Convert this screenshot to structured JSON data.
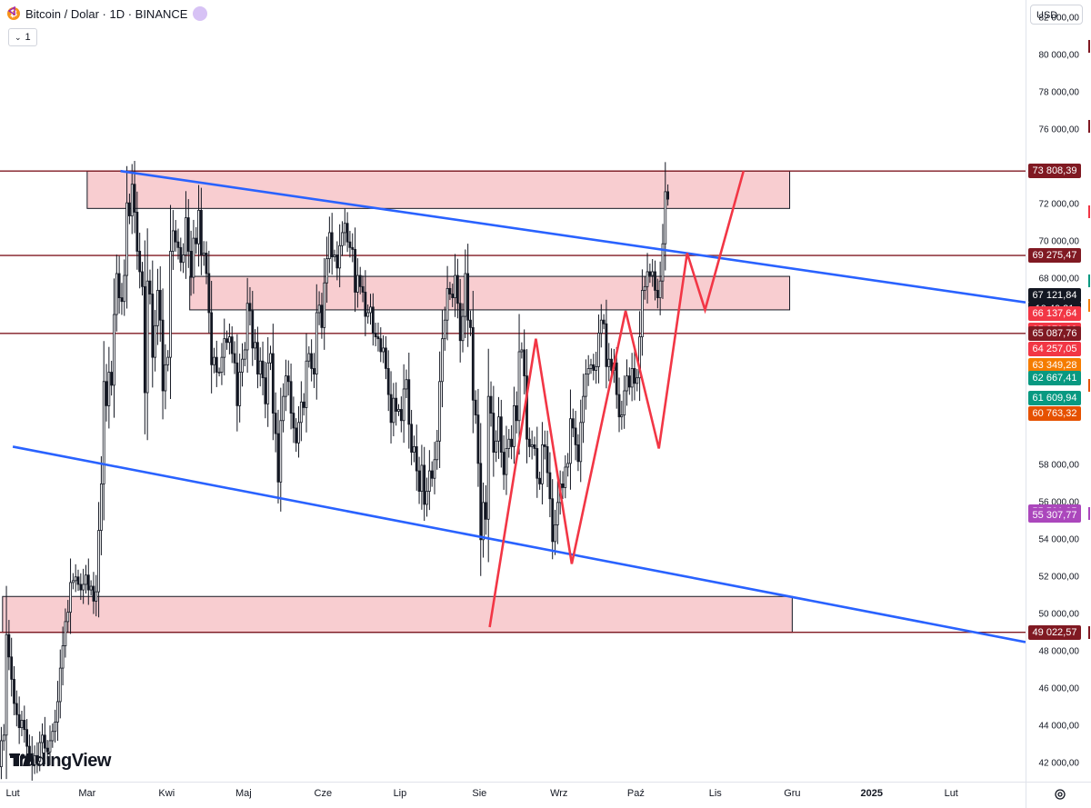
{
  "header": {
    "symbol_title": "Bitcoin / Dolar · 1D · BINANCE",
    "collapse_label": "1",
    "currency": "USD",
    "watermark": "TradingView",
    "icons": [
      "bitcoin-icon",
      "symbol-shape-icon",
      "chevron-down-icon",
      "tradingview-logo-icon",
      "settings-icon"
    ]
  },
  "chart_data": {
    "type": "candlestick",
    "symbol": "Bitcoin / Dolar",
    "interval": "1D",
    "exchange": "BINANCE",
    "y_ticks": [
      "82 000,00",
      "80 000,00",
      "78 000,00",
      "76 000,00",
      "72 000,00",
      "70 000,00",
      "68 000,00",
      "58 000,00",
      "56 000,00",
      "54 000,00",
      "52 000,00",
      "50 000,00",
      "48 000,00",
      "46 000,00",
      "44 000,00",
      "42 000,00"
    ],
    "x_ticks": [
      "Lut",
      "Mar",
      "Kwi",
      "Maj",
      "Cze",
      "Lip",
      "Sie",
      "Wrz",
      "Paź",
      "Lis",
      "Gru",
      "2025",
      "Lut"
    ],
    "ylim": [
      41000,
      83000
    ],
    "xlim": [
      "2024-01-27",
      "2025-03-02"
    ],
    "price_labels": [
      {
        "text": "73 808,39",
        "value": 73808.39,
        "color": "#801922"
      },
      {
        "text": "69 275,47",
        "value": 69275.47,
        "color": "#801922"
      },
      {
        "text": "67 121,84",
        "value": 67121.84,
        "color": "#131722"
      },
      {
        "text": "10:40:21",
        "value": 66400,
        "color": "#131722"
      },
      {
        "text": "66 137,64",
        "value": 66137.64,
        "color": "#f23645"
      },
      {
        "text": "65 270,80",
        "value": 65270.8,
        "color": "#f23645"
      },
      {
        "text": "65 087,76",
        "value": 65087.76,
        "color": "#801922"
      },
      {
        "text": "64 257,05",
        "value": 64257.05,
        "color": "#f23645"
      },
      {
        "text": "63 349,28",
        "value": 63349.28,
        "color": "#f57c00"
      },
      {
        "text": "62 667,41",
        "value": 62667.41,
        "color": "#089981"
      },
      {
        "text": "61 609,94",
        "value": 61609.94,
        "color": "#089981"
      },
      {
        "text": "60 763,32",
        "value": 60763.32,
        "color": "#e65100"
      },
      {
        "text": "55 501,05",
        "value": 55501.05,
        "color": "#ab47bc"
      },
      {
        "text": "55 307,77",
        "value": 55307.77,
        "color": "#ab47bc"
      },
      {
        "text": "49 022,57",
        "value": 49022.57,
        "color": "#801922"
      }
    ],
    "horizontal_lines": [
      73808.39,
      69275.47,
      65087.76,
      49022.57
    ],
    "zones": [
      {
        "x1": "2024-03-01",
        "x2": "2024-11-30",
        "y1": 71800,
        "y2": 73808.39
      },
      {
        "x1": "2024-04-10",
        "x2": "2024-11-30",
        "y1": 66350,
        "y2": 68150
      },
      {
        "x1": "2024-01-28",
        "x2": "2024-12-01",
        "y1": 49022.57,
        "y2": 50950
      }
    ],
    "trendlines": [
      {
        "x1": "2024-03-14",
        "y1": 73808.39,
        "x2": "2025-03-02",
        "y2": 66750
      },
      {
        "x1": "2024-02-01",
        "y1": 59000,
        "x2": "2025-03-02",
        "y2": 48500
      }
    ],
    "zigzag": [
      [
        "2024-08-05",
        49300
      ],
      [
        "2024-08-23",
        64800
      ],
      [
        "2024-09-06",
        52700
      ],
      [
        "2024-09-27",
        66300
      ],
      [
        "2024-10-10",
        58900
      ],
      [
        "2024-10-21",
        69400
      ],
      [
        "2024-10-28",
        66350
      ],
      [
        "2024-11-12",
        73808.39
      ]
    ],
    "candles_by_day": [
      [
        41800,
        43200
      ],
      [
        43200,
        43500
      ],
      [
        43500,
        48900
      ],
      [
        48900,
        47700
      ],
      [
        47700,
        46500
      ],
      [
        46500,
        45200
      ],
      [
        45200,
        44600
      ],
      [
        44600,
        43900
      ],
      [
        43900,
        44300
      ],
      [
        44300,
        43800
      ],
      [
        43800,
        42900
      ],
      [
        42900,
        42500
      ],
      [
        42500,
        41900
      ],
      [
        41900,
        42400
      ],
      [
        42400,
        42100
      ],
      [
        42100,
        43100
      ],
      [
        43100,
        43500
      ],
      [
        43500,
        42800
      ],
      [
        42800,
        42600
      ],
      [
        42600,
        43200
      ],
      [
        43200,
        43700
      ],
      [
        43700,
        44200
      ],
      [
        44200,
        45300
      ],
      [
        45300,
        47100
      ],
      [
        47100,
        48300
      ],
      [
        48300,
        49600
      ],
      [
        49600,
        50100
      ],
      [
        50100,
        51700
      ],
      [
        51700,
        51800
      ],
      [
        51800,
        52000
      ],
      [
        52000,
        51600
      ],
      [
        51600,
        51300
      ],
      [
        51300,
        51600
      ],
      [
        51600,
        52100
      ],
      [
        52100,
        51300
      ],
      [
        51300,
        51500
      ],
      [
        51500,
        50700
      ],
      [
        50700,
        51200
      ],
      [
        51200,
        54500
      ],
      [
        54500,
        57000
      ],
      [
        57000,
        62500
      ],
      [
        62500,
        61200
      ],
      [
        61200,
        63000
      ],
      [
        63000,
        62300
      ],
      [
        62300,
        66100
      ],
      [
        66100,
        68300
      ],
      [
        68300,
        67000
      ],
      [
        67000,
        66800
      ],
      [
        66800,
        68200
      ],
      [
        68200,
        72100
      ],
      [
        72100,
        71400
      ],
      [
        71400,
        73100
      ],
      [
        73100,
        71600
      ],
      [
        71600,
        69500
      ],
      [
        69500,
        68400
      ],
      [
        68400,
        67600
      ],
      [
        67600,
        61900
      ],
      [
        61900,
        67900
      ],
      [
        67900,
        67200
      ],
      [
        67200,
        63800
      ],
      [
        63800,
        65500
      ],
      [
        65500,
        67400
      ],
      [
        67400,
        65800
      ],
      [
        65800,
        62000
      ],
      [
        62000,
        63400
      ],
      [
        63400,
        63800
      ],
      [
        63800,
        69500
      ],
      [
        69500,
        70600
      ],
      [
        70600,
        70000
      ],
      [
        70000,
        69700
      ],
      [
        69700,
        68900
      ],
      [
        68900,
        69300
      ],
      [
        69300,
        71300
      ],
      [
        71300,
        69500
      ],
      [
        69500,
        68100
      ],
      [
        68100,
        70200
      ],
      [
        70200,
        69900
      ],
      [
        69900,
        71700
      ],
      [
        71700,
        69300
      ],
      [
        69300,
        69400
      ],
      [
        69400,
        68300
      ],
      [
        68300,
        66200
      ],
      [
        66200,
        63400
      ],
      [
        63400,
        63800
      ],
      [
        63800,
        63000
      ],
      [
        63000,
        63000
      ],
      [
        63000,
        63800
      ],
      [
        63800,
        64800
      ],
      [
        64800,
        64600
      ],
      [
        64600,
        64900
      ],
      [
        64900,
        64000
      ],
      [
        64000,
        63500
      ],
      [
        63500,
        61200
      ],
      [
        61200,
        63000
      ],
      [
        63000,
        63700
      ],
      [
        63700,
        64200
      ],
      [
        64200,
        66700
      ],
      [
        66700,
        66300
      ],
      [
        66300,
        64300
      ],
      [
        64300,
        64600
      ],
      [
        64600,
        62900
      ],
      [
        62900,
        63600
      ],
      [
        63600,
        62700
      ],
      [
        62700,
        61300
      ],
      [
        61300,
        63500
      ],
      [
        63500,
        64000
      ],
      [
        64000,
        60800
      ],
      [
        60800,
        59700
      ],
      [
        59700,
        57100
      ],
      [
        57100,
        60400
      ],
      [
        60400,
        61700
      ],
      [
        61700,
        62800
      ],
      [
        62800,
        62500
      ],
      [
        62500,
        60800
      ],
      [
        60800,
        60000
      ],
      [
        60000,
        59200
      ],
      [
        59200,
        60300
      ],
      [
        60300,
        61400
      ],
      [
        61400,
        61100
      ],
      [
        61100,
        63600
      ],
      [
        63600,
        64000
      ],
      [
        64000,
        63200
      ],
      [
        63200,
        62900
      ],
      [
        62900,
        66200
      ],
      [
        66200,
        66600
      ],
      [
        66600,
        65400
      ],
      [
        65400,
        67800
      ],
      [
        67800,
        69100
      ],
      [
        69100,
        70500
      ],
      [
        70500,
        69200
      ],
      [
        69200,
        69300
      ],
      [
        69300,
        68600
      ],
      [
        68600,
        69800
      ],
      [
        69800,
        70500
      ],
      [
        70500,
        71000
      ],
      [
        71000,
        70000
      ],
      [
        70000,
        69700
      ],
      [
        69700,
        69600
      ],
      [
        69600,
        67300
      ],
      [
        67300,
        68200
      ],
      [
        68200,
        67600
      ],
      [
        67600,
        67300
      ],
      [
        67300,
        66000
      ],
      [
        66000,
        66200
      ],
      [
        66200,
        66500
      ],
      [
        66500,
        65100
      ],
      [
        65100,
        64900
      ],
      [
        64900,
        64800
      ],
      [
        64800,
        64100
      ],
      [
        64100,
        64300
      ],
      [
        64300,
        63200
      ],
      [
        63200,
        61800
      ],
      [
        61800,
        60300
      ],
      [
        60300,
        61600
      ],
      [
        61600,
        60900
      ],
      [
        60900,
        61000
      ],
      [
        61000,
        60400
      ],
      [
        60400,
        62100
      ],
      [
        62100,
        62600
      ],
      [
        62600,
        60200
      ],
      [
        60200,
        58700
      ],
      [
        58700,
        59000
      ],
      [
        59000,
        57700
      ],
      [
        57700,
        56600
      ],
      [
        56600,
        58000
      ],
      [
        58000,
        55900
      ],
      [
        55900,
        56600
      ],
      [
        56600,
        57700
      ],
      [
        57700,
        57300
      ],
      [
        57300,
        58300
      ],
      [
        58300,
        59300
      ],
      [
        59300,
        62500
      ],
      [
        62500,
        64800
      ],
      [
        64800,
        65800
      ],
      [
        65800,
        67500
      ],
      [
        67500,
        67200
      ],
      [
        67200,
        67000
      ],
      [
        67000,
        68200
      ],
      [
        68200,
        66700
      ],
      [
        66700,
        64700
      ],
      [
        64700,
        66000
      ],
      [
        66000,
        68300
      ],
      [
        68300,
        65800
      ],
      [
        65800,
        65400
      ],
      [
        65400,
        61500
      ],
      [
        61500,
        60700
      ],
      [
        60700,
        58100
      ],
      [
        58100,
        54000
      ],
      [
        54000,
        56000
      ],
      [
        56000,
        55100
      ],
      [
        55100,
        61700
      ],
      [
        61700,
        60800
      ],
      [
        60800,
        58700
      ],
      [
        58700,
        59300
      ],
      [
        59300,
        60600
      ],
      [
        60600,
        58700
      ],
      [
        58700,
        57500
      ],
      [
        57500,
        58900
      ],
      [
        58900,
        59400
      ],
      [
        59400,
        59000
      ],
      [
        59000,
        61200
      ],
      [
        61200,
        60400
      ],
      [
        60400,
        64100
      ],
      [
        64100,
        64200
      ],
      [
        64200,
        62800
      ],
      [
        62800,
        59400
      ],
      [
        59400,
        59000
      ],
      [
        59000,
        59100
      ],
      [
        59100,
        58900
      ],
      [
        58900,
        57300
      ],
      [
        57300,
        57000
      ],
      [
        57000,
        59100
      ],
      [
        59100,
        59000
      ],
      [
        59000,
        57600
      ],
      [
        57600,
        56200
      ],
      [
        56200,
        53900
      ],
      [
        53900,
        54800
      ],
      [
        54800,
        56000
      ],
      [
        56000,
        57000
      ],
      [
        57000,
        56800
      ],
      [
        56800,
        57900
      ],
      [
        57900,
        58100
      ],
      [
        58100,
        60500
      ],
      [
        60500,
        60000
      ],
      [
        60000,
        59100
      ],
      [
        59100,
        58200
      ],
      [
        58200,
        60300
      ],
      [
        60300,
        61700
      ],
      [
        61700,
        62900
      ],
      [
        62900,
        63200
      ],
      [
        63200,
        63400
      ],
      [
        63400,
        63100
      ],
      [
        63100,
        63300
      ],
      [
        63300,
        65100
      ],
      [
        65100,
        65800
      ],
      [
        65800,
        65600
      ],
      [
        65600,
        63300
      ],
      [
        63300,
        63700
      ],
      [
        63700,
        63100
      ],
      [
        63100,
        63500
      ],
      [
        63500,
        61800
      ],
      [
        61800,
        60600
      ],
      [
        60600,
        60700
      ],
      [
        60700,
        62000
      ],
      [
        62000,
        62800
      ],
      [
        62800,
        62200
      ],
      [
        62200,
        63200
      ],
      [
        63200,
        62400
      ],
      [
        62400,
        62700
      ],
      [
        62700,
        64900
      ],
      [
        64900,
        67400
      ],
      [
        67400,
        67600
      ],
      [
        67600,
        68400
      ],
      [
        68400,
        68200
      ],
      [
        68200,
        68400
      ],
      [
        68400,
        67400
      ],
      [
        67400,
        67000
      ],
      [
        67000,
        67900
      ],
      [
        67900,
        69900
      ],
      [
        69900,
        72700
      ],
      [
        72700,
        72300
      ]
    ]
  }
}
